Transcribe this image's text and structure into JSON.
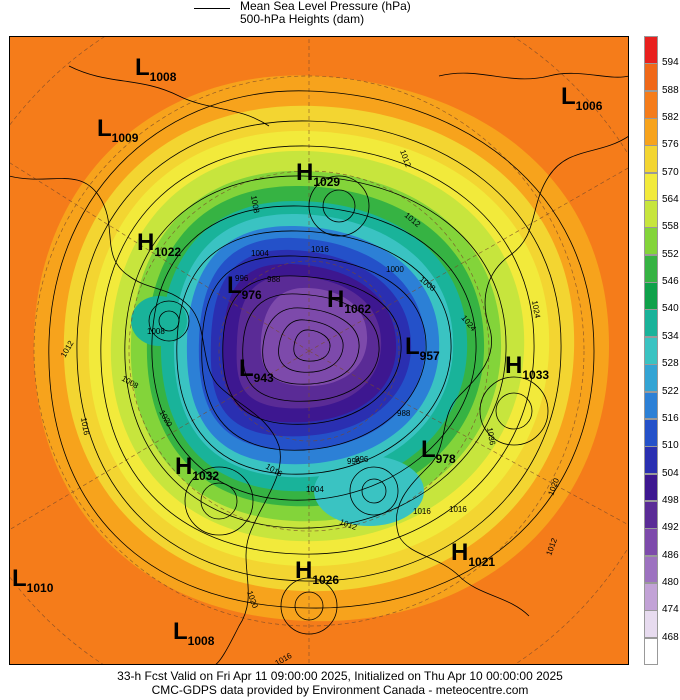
{
  "legend": {
    "line1": "Mean Sea Level Pressure (hPa)",
    "line2": "500-hPa Heights (dam)"
  },
  "colorbar": {
    "labels": [
      "594",
      "588",
      "582",
      "576",
      "570",
      "564",
      "558",
      "552",
      "546",
      "540",
      "534",
      "528",
      "522",
      "516",
      "510",
      "504",
      "498",
      "492",
      "486",
      "480",
      "474",
      "468"
    ],
    "colors": [
      "#e8201e",
      "#f06818",
      "#f57c1a",
      "#f7a31c",
      "#f3d531",
      "#f2ea3b",
      "#c7e53d",
      "#83d43a",
      "#36b343",
      "#0fa14a",
      "#19b39a",
      "#3ac3c2",
      "#33a4d4",
      "#2c80d6",
      "#2451c9",
      "#2a2fb1",
      "#3d1790",
      "#5a2b96",
      "#7d4aab",
      "#9d72c0",
      "#c2a2d6",
      "#e7dbef",
      "#ffffff"
    ]
  },
  "pressure_systems": [
    {
      "type": "L",
      "value": "1008"
    },
    {
      "type": "L",
      "value": "1009"
    },
    {
      "type": "L",
      "value": "1006"
    },
    {
      "type": "H",
      "value": "1029"
    },
    {
      "type": "H",
      "value": "1022"
    },
    {
      "type": "L",
      "value": "976"
    },
    {
      "type": "H",
      "value": "1062"
    },
    {
      "type": "L",
      "value": "957"
    },
    {
      "type": "L",
      "value": "943"
    },
    {
      "type": "H",
      "value": "1033"
    },
    {
      "type": "H",
      "value": "1032"
    },
    {
      "type": "L",
      "value": "978"
    },
    {
      "type": "H",
      "value": "1021"
    },
    {
      "type": "H",
      "value": "1026"
    },
    {
      "type": "L",
      "value": "1010"
    },
    {
      "type": "L",
      "value": "1008"
    }
  ],
  "isobar_labels": [
    "1012",
    "1008",
    "1016",
    "1012",
    "1004",
    "996",
    "988",
    "1000",
    "1008",
    "1024",
    "1008",
    "1012",
    "1008",
    "1016",
    "1020",
    "1024",
    "1036",
    "1020",
    "1012",
    "1016",
    "1004",
    "996",
    "988",
    "996",
    "1016",
    "1012",
    "1020",
    "1016",
    "1016"
  ],
  "footer": {
    "line1": "33-h Fcst Valid on Fri Apr 11 09:00:00 2025, Initialized on Thu Apr 10 00:00:00 2025",
    "line2": "CMC-GDPS data provided by Environment Canada - meteocentre.com"
  }
}
